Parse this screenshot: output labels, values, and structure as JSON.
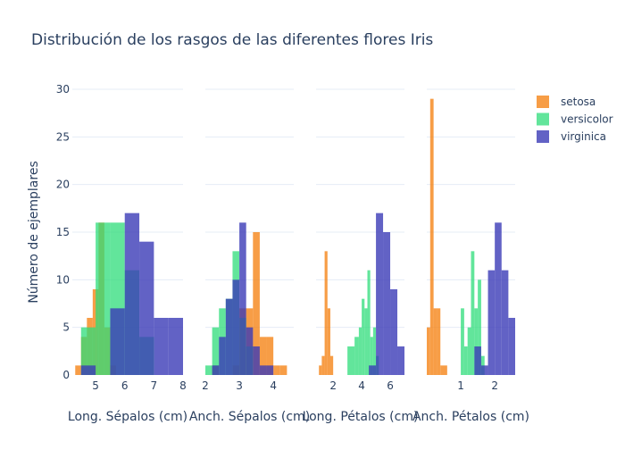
{
  "chart_data": {
    "type": "histogram",
    "title": "Distribución de los rasgos de las diferentes flores Iris",
    "ylabel": "Número de ejemplares",
    "ylim": [
      0,
      30
    ],
    "yticks": [
      0,
      5,
      10,
      15,
      20,
      25,
      30
    ],
    "grid": true,
    "legend_position": "top-right",
    "barmode": "overlay",
    "series": [
      {
        "name": "setosa",
        "color": "#f58518",
        "opacity": 0.8
      },
      {
        "name": "versicolor",
        "color": "#2ddc7a",
        "opacity": 0.75
      },
      {
        "name": "virginica",
        "color": "#3b3bb7",
        "opacity": 0.8
      }
    ],
    "panels": [
      {
        "xlabel": "Long. Sépalos (cm)",
        "xlim": [
          4.2,
          8.0
        ],
        "xticks": [
          5,
          6,
          7,
          8
        ],
        "histograms": {
          "setosa": {
            "bins": [
              [
                4.3,
                4.5,
                1
              ],
              [
                4.5,
                4.7,
                4
              ],
              [
                4.7,
                4.9,
                6
              ],
              [
                4.9,
                5.1,
                9
              ],
              [
                5.1,
                5.3,
                16
              ],
              [
                5.3,
                5.5,
                5
              ],
              [
                5.5,
                5.7,
                1
              ]
            ]
          },
          "versicolor": {
            "bins": [
              [
                4.5,
                5.0,
                5
              ],
              [
                5.0,
                5.5,
                16
              ],
              [
                5.5,
                6.0,
                16
              ],
              [
                6.0,
                6.5,
                11
              ],
              [
                6.5,
                7.0,
                4
              ]
            ]
          },
          "virginica": {
            "bins": [
              [
                4.5,
                5.0,
                1
              ],
              [
                5.0,
                5.5,
                0
              ],
              [
                5.5,
                6.0,
                7
              ],
              [
                6.0,
                6.5,
                17
              ],
              [
                6.5,
                7.0,
                14
              ],
              [
                7.0,
                7.5,
                6
              ],
              [
                7.5,
                8.0,
                6
              ]
            ]
          }
        }
      },
      {
        "xlabel": "Anch. Sépalos (cm)",
        "xlim": [
          2.0,
          4.6
        ],
        "xticks": [
          2,
          3,
          4
        ],
        "histograms": {
          "setosa": {
            "bins": [
              [
                2.2,
                2.4,
                1
              ],
              [
                2.4,
                2.6,
                0
              ],
              [
                2.6,
                2.8,
                0
              ],
              [
                2.8,
                3.0,
                1
              ],
              [
                3.0,
                3.2,
                7
              ],
              [
                3.2,
                3.4,
                7
              ],
              [
                3.4,
                3.6,
                15
              ],
              [
                3.6,
                3.8,
                4
              ],
              [
                3.8,
                4.0,
                4
              ],
              [
                4.0,
                4.2,
                1
              ],
              [
                4.2,
                4.4,
                1
              ]
            ]
          },
          "versicolor": {
            "bins": [
              [
                2.0,
                2.2,
                1
              ],
              [
                2.2,
                2.4,
                5
              ],
              [
                2.4,
                2.6,
                7
              ],
              [
                2.6,
                2.8,
                8
              ],
              [
                2.8,
                3.0,
                13
              ],
              [
                3.0,
                3.2,
                6
              ],
              [
                3.2,
                3.4,
                3
              ]
            ]
          },
          "virginica": {
            "bins": [
              [
                2.2,
                2.4,
                1
              ],
              [
                2.4,
                2.6,
                4
              ],
              [
                2.6,
                2.8,
                8
              ],
              [
                2.8,
                3.0,
                10
              ],
              [
                3.0,
                3.2,
                16
              ],
              [
                3.2,
                3.4,
                5
              ],
              [
                3.4,
                3.6,
                3
              ],
              [
                3.6,
                3.8,
                1
              ],
              [
                3.8,
                4.0,
                1
              ]
            ]
          }
        }
      },
      {
        "xlabel": "Long. Pétalos (cm)",
        "xlim": [
          0.8,
          7.0
        ],
        "xticks": [
          2,
          4,
          6
        ],
        "histograms": {
          "setosa": {
            "bins": [
              [
                1.0,
                1.2,
                1
              ],
              [
                1.2,
                1.4,
                2
              ],
              [
                1.4,
                1.6,
                13
              ],
              [
                1.6,
                1.8,
                7
              ],
              [
                1.8,
                2.0,
                2
              ]
            ]
          },
          "versicolor": {
            "bins": [
              [
                3.0,
                3.5,
                3
              ],
              [
                3.5,
                3.8,
                4
              ],
              [
                3.8,
                4.0,
                5
              ],
              [
                4.0,
                4.2,
                8
              ],
              [
                4.2,
                4.4,
                7
              ],
              [
                4.4,
                4.6,
                11
              ],
              [
                4.6,
                4.8,
                4
              ],
              [
                4.8,
                5.0,
                5
              ],
              [
                5.0,
                5.2,
                2
              ]
            ]
          },
          "virginica": {
            "bins": [
              [
                4.5,
                5.0,
                1
              ],
              [
                5.0,
                5.5,
                17
              ],
              [
                5.5,
                6.0,
                15
              ],
              [
                6.0,
                6.5,
                9
              ],
              [
                6.5,
                7.0,
                3
              ]
            ]
          }
        }
      },
      {
        "xlabel": "Anch. Pétalos (cm)",
        "xlim": [
          0.0,
          2.6
        ],
        "xticks": [
          1,
          2
        ],
        "histograms": {
          "setosa": {
            "bins": [
              [
                0.0,
                0.1,
                5
              ],
              [
                0.1,
                0.2,
                29
              ],
              [
                0.2,
                0.3,
                7
              ],
              [
                0.3,
                0.4,
                7
              ],
              [
                0.4,
                0.6,
                1
              ]
            ]
          },
          "versicolor": {
            "bins": [
              [
                1.0,
                1.1,
                7
              ],
              [
                1.1,
                1.2,
                3
              ],
              [
                1.2,
                1.3,
                5
              ],
              [
                1.3,
                1.4,
                13
              ],
              [
                1.4,
                1.5,
                7
              ],
              [
                1.5,
                1.6,
                10
              ],
              [
                1.6,
                1.7,
                2
              ]
            ]
          },
          "virginica": {
            "bins": [
              [
                1.4,
                1.6,
                3
              ],
              [
                1.6,
                1.8,
                1
              ],
              [
                1.8,
                2.0,
                11
              ],
              [
                2.0,
                2.2,
                16
              ],
              [
                2.2,
                2.4,
                11
              ],
              [
                2.4,
                2.6,
                6
              ]
            ]
          }
        }
      }
    ]
  }
}
